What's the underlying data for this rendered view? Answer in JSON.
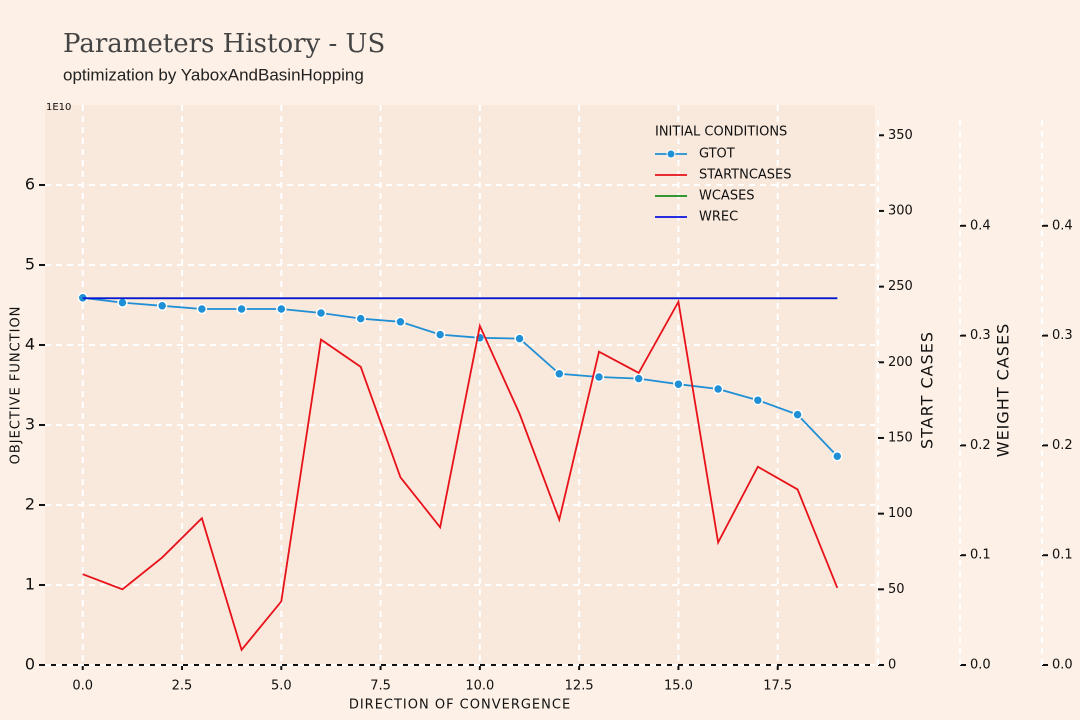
{
  "chart_data": {
    "type": "line",
    "title": "Parameters History - US",
    "subtitle": "optimization by YaboxAndBasinHopping",
    "x_label": "DIRECTION OF CONVERGENCE",
    "y_label": "OBJECTIVE FUNCTION",
    "y_offset_label": "1E10",
    "y2_label": "START CASES",
    "y3_label": "WEIGHT CASES",
    "legend_title": "INITIAL CONDITIONS",
    "legend": "upper right",
    "grid": true,
    "x": [
      0,
      1,
      2,
      3,
      4,
      5,
      6,
      7,
      8,
      9,
      10,
      11,
      12,
      13,
      14,
      15,
      16,
      17,
      18,
      19
    ],
    "xlim": [
      -0.95,
      19.95
    ],
    "xticks": [
      {
        "value": 0,
        "label": "0.0"
      },
      {
        "value": 2.5,
        "label": "2.5"
      },
      {
        "value": 5,
        "label": "5.0"
      },
      {
        "value": 7.5,
        "label": "7.5"
      },
      {
        "value": 10,
        "label": "10.0"
      },
      {
        "value": 12.5,
        "label": "12.5"
      },
      {
        "value": 15,
        "label": "15.0"
      },
      {
        "value": 17.5,
        "label": "17.5"
      }
    ],
    "ylim": [
      0,
      7
    ],
    "yticks": [
      0,
      1,
      2,
      3,
      4,
      5,
      6
    ],
    "y2lim": [
      0,
      370
    ],
    "y2ticks": [
      0,
      50,
      100,
      150,
      200,
      250,
      300,
      350
    ],
    "y3lim": [
      0,
      0.51
    ],
    "y3ticks": [
      {
        "value": 0,
        "label": "0.0"
      },
      0.1,
      0.2,
      0.3,
      0.4
    ],
    "y4lim": [
      0,
      0.51
    ],
    "y4ticks": [
      {
        "value": 0,
        "label": "0.0"
      },
      0.1,
      0.2,
      0.3,
      0.4
    ],
    "series": [
      {
        "name": "GTOT",
        "color": "#1f8fd6",
        "axis": "y",
        "marker": true,
        "values": [
          4.59,
          4.53,
          4.49,
          4.45,
          4.45,
          4.45,
          4.4,
          4.33,
          4.29,
          4.13,
          4.09,
          4.08,
          3.64,
          3.6,
          3.58,
          3.51,
          3.45,
          3.31,
          3.13,
          2.61
        ]
      },
      {
        "name": "STARTNCASES",
        "color": "#e8121a",
        "axis": "y2",
        "values": [
          60,
          50,
          71,
          97,
          10,
          42,
          215,
          197,
          124,
          91,
          224,
          166,
          96,
          207,
          193,
          240,
          81,
          131,
          116,
          51
        ]
      },
      {
        "name": "WCASES",
        "color": "#178a17",
        "axis": "y3",
        "values": [
          0.334,
          0.334,
          0.334,
          0.334,
          0.334,
          0.334,
          0.334,
          0.334,
          0.334,
          0.334,
          0.334,
          0.334,
          0.334,
          0.334,
          0.334,
          0.334,
          0.334,
          0.334,
          0.334,
          0.334
        ]
      },
      {
        "name": "WREC",
        "color": "#0a14e0",
        "axis": "y4",
        "values": [
          0.334,
          0.334,
          0.334,
          0.334,
          0.334,
          0.334,
          0.334,
          0.334,
          0.334,
          0.334,
          0.334,
          0.334,
          0.334,
          0.334,
          0.334,
          0.334,
          0.334,
          0.334,
          0.334,
          0.334
        ]
      }
    ]
  }
}
